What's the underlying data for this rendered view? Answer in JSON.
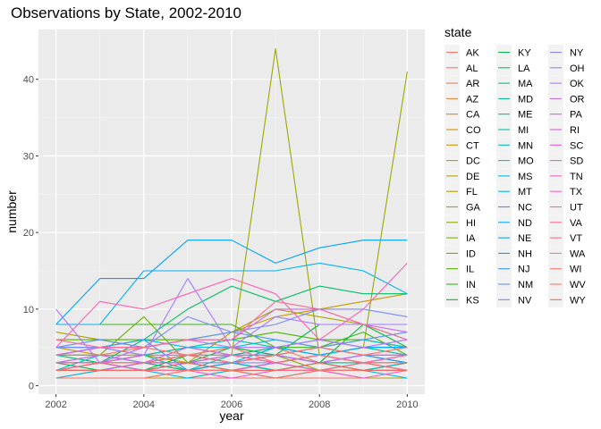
{
  "chart_data": {
    "type": "line",
    "title": "Observations by State, 2002-2010",
    "xlabel": "year",
    "ylabel": "number",
    "xlim": [
      2001.6,
      2010.4
    ],
    "ylim": [
      -1.1,
      46.5
    ],
    "x_ticks": [
      2002,
      2004,
      2006,
      2008,
      2010
    ],
    "x_tick_labels": [
      "2002",
      "2004",
      "2006",
      "2008",
      "2010"
    ],
    "y_ticks": [
      0,
      10,
      20,
      30,
      40
    ],
    "y_tick_labels": [
      "0",
      "10",
      "20",
      "30",
      "40"
    ],
    "grid": true,
    "legend_title": "state",
    "legend_position": "right",
    "x": [
      2002,
      2003,
      2004,
      2005,
      2006,
      2007,
      2008,
      2009,
      2010
    ],
    "series": [
      {
        "name": "AK",
        "color": "#F8766D",
        "values": [
          1,
          1,
          1,
          1,
          1,
          1,
          1,
          1,
          1
        ]
      },
      {
        "name": "AL",
        "color": "#F47A5E",
        "values": [
          2,
          2,
          2,
          2,
          3,
          2,
          2,
          3,
          2
        ]
      },
      {
        "name": "AR",
        "color": "#EF7F4F",
        "values": [
          3,
          4,
          3,
          3,
          4,
          5,
          3,
          4,
          3
        ]
      },
      {
        "name": "AZ",
        "color": "#E8853A",
        "values": [
          2,
          3,
          4,
          3,
          2,
          3,
          4,
          3,
          2
        ]
      },
      {
        "name": "CA",
        "color": "#E18A00",
        "values": [
          1,
          2,
          3,
          4,
          5,
          4,
          3,
          2,
          3
        ]
      },
      {
        "name": "CO",
        "color": "#D89000",
        "values": [
          2,
          2,
          3,
          2,
          2,
          3,
          2,
          2,
          2
        ]
      },
      {
        "name": "CT",
        "color": "#CF9400",
        "values": [
          3,
          3,
          2,
          2,
          3,
          2,
          3,
          2,
          2
        ]
      },
      {
        "name": "DC",
        "color": "#C49A00",
        "values": [
          5,
          4,
          4,
          3,
          7,
          9,
          10,
          11,
          12
        ]
      },
      {
        "name": "DE",
        "color": "#B9A000",
        "values": [
          1,
          1,
          1,
          1,
          2,
          1,
          2,
          1,
          1
        ]
      },
      {
        "name": "FL",
        "color": "#ABA300",
        "values": [
          7,
          6,
          5,
          6,
          7,
          10,
          9,
          8,
          8
        ]
      },
      {
        "name": "GA",
        "color": "#9EA700",
        "values": [
          3,
          3,
          4,
          5,
          4,
          44,
          4,
          5,
          41
        ]
      },
      {
        "name": "HI",
        "color": "#8FAA00",
        "values": [
          2,
          3,
          3,
          4,
          3,
          4,
          2,
          2,
          3
        ]
      },
      {
        "name": "IA",
        "color": "#7EAE00",
        "values": [
          2,
          2,
          2,
          2,
          3,
          2,
          2,
          2,
          2
        ]
      },
      {
        "name": "ID",
        "color": "#69B100",
        "values": [
          4,
          4,
          9,
          3,
          2,
          3,
          4,
          3,
          3
        ]
      },
      {
        "name": "IL",
        "color": "#53B400",
        "values": [
          6,
          6,
          6,
          6,
          6,
          7,
          6,
          6,
          5
        ]
      },
      {
        "name": "IN",
        "color": "#3AB713",
        "values": [
          8,
          8,
          8,
          8,
          8,
          5,
          5,
          7,
          4
        ]
      },
      {
        "name": "KS",
        "color": "#00BA38",
        "values": [
          3,
          3,
          2,
          4,
          3,
          4,
          3,
          8,
          5
        ]
      },
      {
        "name": "KY",
        "color": "#00BC50",
        "values": [
          3,
          2,
          3,
          3,
          5,
          4,
          8,
          8,
          6
        ]
      },
      {
        "name": "LA",
        "color": "#00BE67",
        "values": [
          4,
          3,
          6,
          10,
          13,
          11,
          13,
          12,
          12
        ]
      },
      {
        "name": "MA",
        "color": "#00BF7D",
        "values": [
          2,
          2,
          3,
          2,
          3,
          2,
          3,
          3,
          2
        ]
      },
      {
        "name": "MD",
        "color": "#00C08D",
        "values": [
          4,
          4,
          3,
          4,
          4,
          5,
          4,
          5,
          4
        ]
      },
      {
        "name": "ME",
        "color": "#00C19F",
        "values": [
          3,
          3,
          4,
          2,
          4,
          4,
          5,
          4,
          3
        ]
      },
      {
        "name": "MI",
        "color": "#00C0B0",
        "values": [
          5,
          5,
          4,
          5,
          6,
          5,
          6,
          5,
          5
        ]
      },
      {
        "name": "MN",
        "color": "#00BFC2",
        "values": [
          2,
          4,
          3,
          3,
          4,
          3,
          4,
          3,
          4
        ]
      },
      {
        "name": "MO",
        "color": "#00BDD0",
        "values": [
          2,
          3,
          2,
          3,
          3,
          2,
          3,
          2,
          3
        ]
      },
      {
        "name": "MS",
        "color": "#00BBDB",
        "values": [
          4,
          5,
          6,
          5,
          5,
          6,
          5,
          6,
          5
        ]
      },
      {
        "name": "MT",
        "color": "#00B7E7",
        "values": [
          1,
          2,
          2,
          1,
          2,
          1,
          2,
          2,
          1
        ]
      },
      {
        "name": "NC",
        "color": "#00B3F0",
        "values": [
          8,
          8,
          15,
          15,
          15,
          15,
          16,
          15,
          12
        ]
      },
      {
        "name": "ND",
        "color": "#00AEFA",
        "values": [
          2,
          3,
          2,
          3,
          2,
          3,
          2,
          3,
          3
        ]
      },
      {
        "name": "NE",
        "color": "#00A8FF",
        "values": [
          3,
          3,
          3,
          4,
          3,
          5,
          4,
          5,
          5
        ]
      },
      {
        "name": "NH",
        "color": "#00A2FF",
        "values": [
          8,
          14,
          14,
          19,
          19,
          16,
          18,
          19,
          19
        ]
      },
      {
        "name": "NJ",
        "color": "#2E9AFF",
        "values": [
          4,
          5,
          6,
          2,
          3,
          4,
          3,
          4,
          3
        ]
      },
      {
        "name": "NM",
        "color": "#5C92FF",
        "values": [
          5,
          6,
          5,
          6,
          7,
          6,
          5,
          6,
          7
        ]
      },
      {
        "name": "NV",
        "color": "#7B89FF",
        "values": [
          5,
          5,
          5,
          9,
          7,
          8,
          10,
          10,
          9
        ]
      },
      {
        "name": "NY",
        "color": "#9281FF",
        "values": [
          3,
          3,
          3,
          3,
          3,
          3,
          4,
          3,
          3
        ]
      },
      {
        "name": "OH",
        "color": "#A679FF",
        "values": [
          4,
          5,
          4,
          14,
          5,
          9,
          8,
          8,
          8
        ]
      },
      {
        "name": "OK",
        "color": "#B670FF",
        "values": [
          10,
          3,
          5,
          6,
          5,
          5,
          6,
          5,
          6
        ]
      },
      {
        "name": "OR",
        "color": "#C568F6",
        "values": [
          3,
          4,
          3,
          5,
          4,
          4,
          3,
          4,
          4
        ]
      },
      {
        "name": "PA",
        "color": "#D263EE",
        "values": [
          4,
          5,
          5,
          6,
          6,
          10,
          10,
          8,
          7
        ]
      },
      {
        "name": "RI",
        "color": "#DD5EE4",
        "values": [
          2,
          2,
          3,
          3,
          4,
          3,
          4,
          3,
          4
        ]
      },
      {
        "name": "SC",
        "color": "#E65CDA",
        "values": [
          3,
          3,
          4,
          4,
          3,
          4,
          5,
          4,
          4
        ]
      },
      {
        "name": "SD",
        "color": "#EF5BCF",
        "values": [
          1,
          1,
          1,
          2,
          1,
          2,
          2,
          1,
          2
        ]
      },
      {
        "name": "TN",
        "color": "#F55FC2",
        "values": [
          2,
          3,
          2,
          2,
          2,
          3,
          2,
          2,
          2
        ]
      },
      {
        "name": "TX",
        "color": "#FA62B5",
        "values": [
          5,
          11,
          10,
          12,
          14,
          12,
          6,
          10,
          16
        ]
      },
      {
        "name": "UT",
        "color": "#FD66A6",
        "values": [
          3,
          3,
          3,
          4,
          4,
          3,
          4,
          3,
          4
        ]
      },
      {
        "name": "VA",
        "color": "#FF6996",
        "values": [
          6,
          5,
          5,
          6,
          6,
          11,
          10,
          8,
          6
        ]
      },
      {
        "name": "VT",
        "color": "#FF6D86",
        "values": [
          2,
          2,
          2,
          2,
          2,
          2,
          2,
          3,
          2
        ]
      },
      {
        "name": "WA",
        "color": "#FD7175",
        "values": [
          2,
          3,
          3,
          4,
          5,
          3,
          4,
          3,
          3
        ]
      },
      {
        "name": "WI",
        "color": "#FA7469",
        "values": [
          4,
          4,
          5,
          4,
          3,
          4,
          5,
          4,
          5
        ]
      },
      {
        "name": "WV",
        "color": "#F8766D",
        "values": [
          1,
          1,
          1,
          2,
          2,
          1,
          2,
          2,
          2
        ]
      },
      {
        "name": "WY",
        "color": "#F36B60",
        "values": [
          2,
          2,
          2,
          3,
          2,
          2,
          3,
          2,
          2
        ]
      }
    ]
  }
}
